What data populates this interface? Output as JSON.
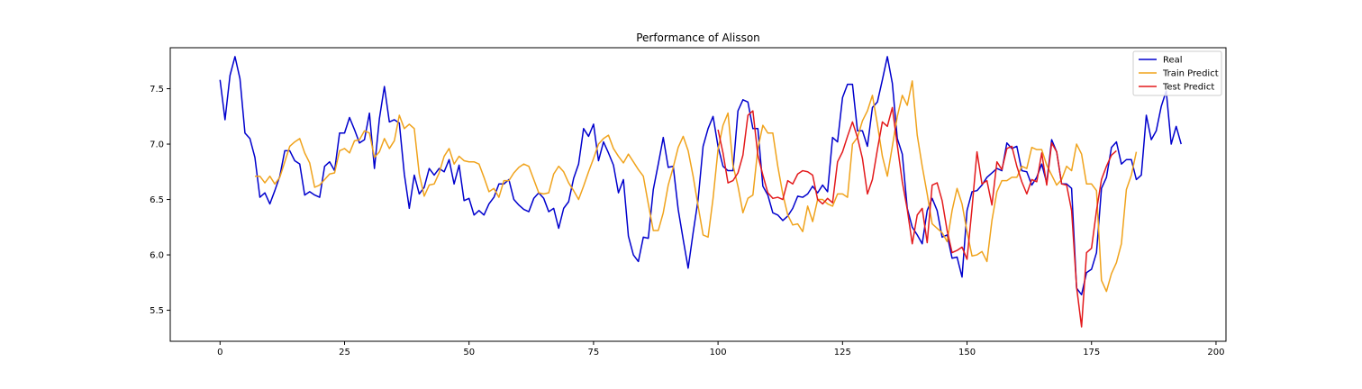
{
  "chart_data": {
    "type": "line",
    "title": "Performance of Alisson",
    "xlabel": "",
    "ylabel": "",
    "xlim": [
      -10,
      202
    ],
    "ylim": [
      5.22,
      7.87
    ],
    "xticks": [
      0,
      25,
      50,
      75,
      100,
      125,
      150,
      175,
      200
    ],
    "yticks": [
      5.5,
      6.0,
      6.5,
      7.0,
      7.5
    ],
    "ytick_labels": [
      "5.5",
      "6.0",
      "6.5",
      "7.0",
      "7.5"
    ],
    "grid": false,
    "legend_position": "top-right",
    "series": [
      {
        "name": "Real",
        "color": "#0000cd",
        "x_start": 0,
        "values": [
          7.58,
          7.22,
          7.62,
          7.79,
          7.59,
          7.1,
          7.05,
          6.88,
          6.52,
          6.56,
          6.46,
          6.58,
          6.71,
          6.94,
          6.94,
          6.85,
          6.82,
          6.54,
          6.57,
          6.54,
          6.52,
          6.8,
          6.84,
          6.76,
          7.1,
          7.1,
          7.24,
          7.13,
          7.01,
          7.04,
          7.28,
          6.78,
          7.23,
          7.52,
          7.2,
          7.22,
          7.19,
          6.73,
          6.42,
          6.72,
          6.55,
          6.61,
          6.78,
          6.72,
          6.78,
          6.75,
          6.86,
          6.64,
          6.81,
          6.49,
          6.51,
          6.36,
          6.4,
          6.36,
          6.46,
          6.52,
          6.64,
          6.64,
          6.68,
          6.5,
          6.45,
          6.41,
          6.39,
          6.51,
          6.56,
          6.51,
          6.39,
          6.42,
          6.24,
          6.42,
          6.48,
          6.69,
          6.82,
          7.14,
          7.07,
          7.18,
          6.85,
          7.02,
          6.92,
          6.81,
          6.56,
          6.68,
          6.17,
          6.0,
          5.94,
          6.16,
          6.15,
          6.59,
          6.82,
          7.06,
          6.79,
          6.8,
          6.41,
          6.14,
          5.88,
          6.2,
          6.5,
          6.98,
          7.14,
          7.25,
          6.98,
          6.8,
          6.76,
          6.76,
          7.3,
          7.4,
          7.38,
          7.14,
          7.14,
          6.62,
          6.54,
          6.38,
          6.36,
          6.31,
          6.35,
          6.42,
          6.53,
          6.52,
          6.55,
          6.62,
          6.56,
          6.63,
          6.57,
          7.06,
          7.02,
          7.42,
          7.54,
          7.54,
          7.12,
          7.12,
          6.98,
          7.33,
          7.38,
          7.58,
          7.79,
          7.55,
          7.05,
          6.91,
          6.42,
          6.25,
          6.18,
          6.1,
          6.4,
          6.51,
          6.4,
          6.16,
          6.18,
          5.97,
          5.98,
          5.8,
          6.4,
          6.57,
          6.58,
          6.63,
          6.7,
          6.74,
          6.78,
          6.76,
          7.01,
          6.96,
          6.98,
          6.76,
          6.75,
          6.63,
          6.7,
          6.82,
          6.65,
          7.04,
          6.93,
          6.64,
          6.64,
          6.6,
          5.7,
          5.64,
          5.84,
          5.87,
          6.02,
          6.6,
          6.7,
          6.97,
          7.02,
          6.82,
          6.86,
          6.86,
          6.68,
          6.72,
          7.26,
          7.04,
          7.12,
          7.34,
          7.48,
          7.0,
          7.16,
          7.0
        ]
      },
      {
        "name": "Train Predict",
        "color": "#f0a31c",
        "x_start": 7,
        "values": [
          6.71,
          6.71,
          6.65,
          6.71,
          6.64,
          6.7,
          6.84,
          6.98,
          7.02,
          7.05,
          6.92,
          6.83,
          6.61,
          6.63,
          6.68,
          6.73,
          6.74,
          6.94,
          6.96,
          6.92,
          7.03,
          7.04,
          7.12,
          7.1,
          6.88,
          6.93,
          7.05,
          6.96,
          7.03,
          7.26,
          7.14,
          7.18,
          7.14,
          6.73,
          6.53,
          6.63,
          6.64,
          6.74,
          6.89,
          6.96,
          6.82,
          6.89,
          6.85,
          6.84,
          6.84,
          6.82,
          6.7,
          6.57,
          6.6,
          6.52,
          6.67,
          6.67,
          6.74,
          6.79,
          6.82,
          6.8,
          6.68,
          6.56,
          6.55,
          6.56,
          6.73,
          6.8,
          6.75,
          6.65,
          6.58,
          6.5,
          6.62,
          6.75,
          6.87,
          7.0,
          7.05,
          7.08,
          6.96,
          6.89,
          6.83,
          6.91,
          6.84,
          6.77,
          6.71,
          6.46,
          6.22,
          6.22,
          6.38,
          6.63,
          6.79,
          6.97,
          7.07,
          6.94,
          6.71,
          6.44,
          6.18,
          6.16,
          6.51,
          6.95,
          7.17,
          7.28,
          6.81,
          6.62,
          6.38,
          6.51,
          6.54,
          6.96,
          7.17,
          7.1,
          7.1,
          6.8,
          6.55,
          6.36,
          6.27,
          6.28,
          6.21,
          6.44,
          6.3,
          6.5,
          6.5,
          6.46,
          6.44,
          6.55,
          6.55,
          6.52,
          7.0,
          7.06,
          7.21,
          7.3,
          7.44,
          7.18,
          6.89,
          6.71,
          6.98,
          7.25,
          7.44,
          7.35,
          7.57,
          7.08,
          6.8,
          6.55,
          6.28,
          6.24,
          6.2,
          6.12,
          6.4,
          6.6,
          6.46,
          6.21,
          5.99,
          6.0,
          6.03,
          5.94,
          6.31,
          6.57,
          6.67,
          6.67,
          6.7,
          6.7,
          6.8,
          6.78,
          6.97,
          6.95,
          6.95,
          6.81,
          6.72,
          6.63,
          6.68,
          6.8,
          6.76,
          7.0,
          6.91,
          6.64,
          6.64,
          6.58,
          5.77,
          5.67,
          5.83,
          5.93,
          6.1,
          6.59,
          6.72,
          6.93
        ]
      },
      {
        "name": "Test Predict",
        "color": "#e31a1c",
        "x_start": 100,
        "values": [
          7.13,
          6.92,
          6.65,
          6.67,
          6.74,
          6.9,
          7.26,
          7.3,
          6.9,
          6.72,
          6.56,
          6.51,
          6.52,
          6.5,
          6.67,
          6.64,
          6.73,
          6.76,
          6.75,
          6.72,
          6.5,
          6.46,
          6.51,
          6.47,
          6.84,
          6.93,
          7.07,
          7.2,
          7.06,
          6.87,
          6.55,
          6.68,
          6.95,
          7.2,
          7.16,
          7.33,
          6.99,
          6.66,
          6.41,
          6.1,
          6.36,
          6.42,
          6.11,
          6.63,
          6.65,
          6.49,
          6.22,
          6.02,
          6.04,
          6.07,
          5.96,
          6.42,
          6.93,
          6.64,
          6.67,
          6.45,
          6.84,
          6.77,
          6.96,
          6.98,
          6.8,
          6.66,
          6.55,
          6.68,
          6.66,
          6.92,
          6.63,
          7.01,
          6.93,
          6.64,
          6.63,
          6.4,
          5.71,
          5.35,
          6.02,
          6.06,
          6.4,
          6.68,
          6.8,
          6.9,
          6.94
        ]
      }
    ]
  }
}
